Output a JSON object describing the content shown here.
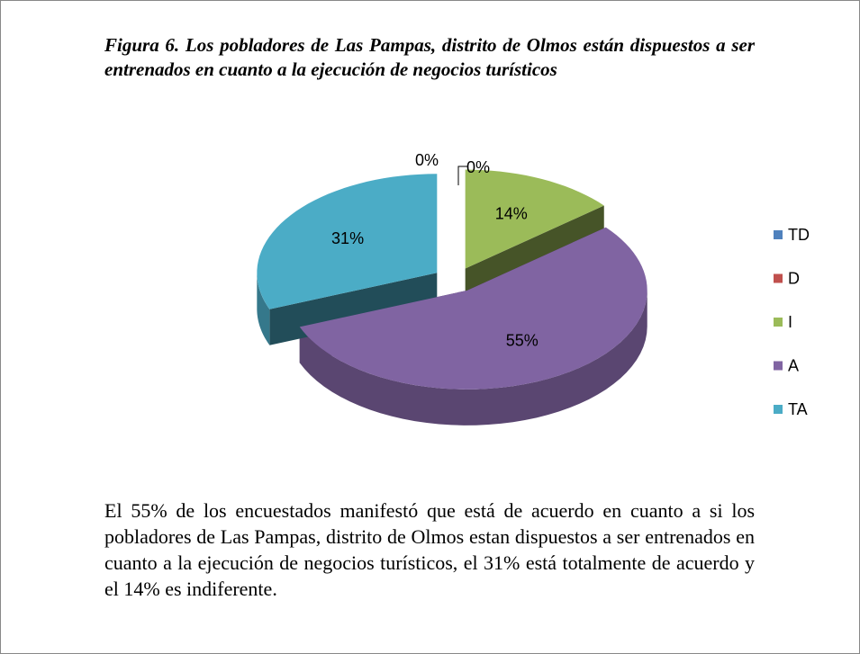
{
  "chart_data": {
    "type": "pie3d",
    "title": "Figura 6. Los pobladores de Las Pampas, distrito de Olmos están dispuestos a ser entrenados en cuanto a la ejecución de negocios turísticos",
    "categories": [
      "TD",
      "D",
      "I",
      "A",
      "TA"
    ],
    "values": [
      0,
      0,
      14,
      55,
      31
    ],
    "value_labels": [
      "0%",
      "0%",
      "14%",
      "55%",
      "31%"
    ],
    "colors": [
      "#4f81bd",
      "#c0504d",
      "#9bbb59",
      "#8064a2",
      "#4bacc6"
    ],
    "legend": "right"
  },
  "text": {
    "paragraph": "El 55% de los encuestados manifestó que está de acuerdo en cuanto a si los pobladores de Las Pampas, distrito de Olmos estan dispuestos a ser entrenados en cuanto a la ejecución de negocios turísticos, el 31% está totalmente de acuerdo y el 14% es indiferente."
  }
}
